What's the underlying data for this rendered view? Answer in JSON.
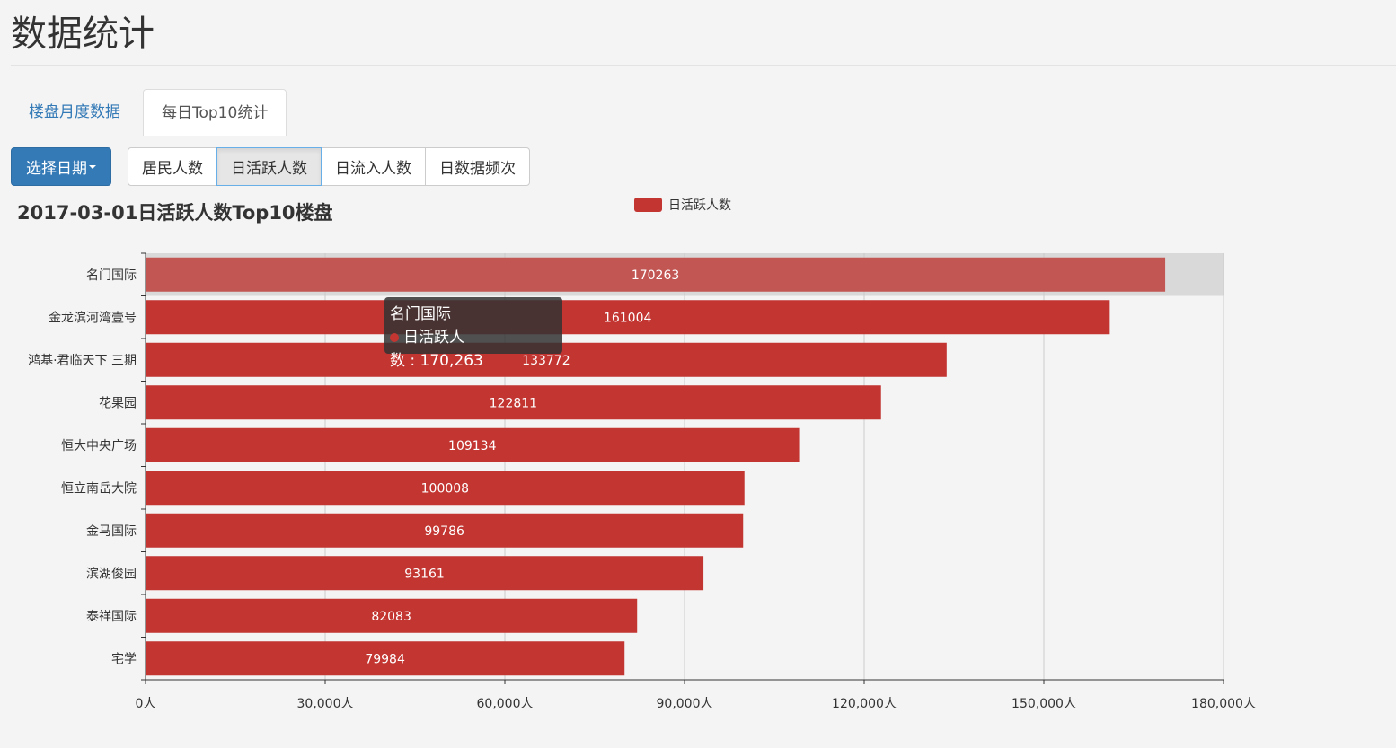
{
  "page": {
    "title": "数据统计"
  },
  "tabs": [
    {
      "label": "楼盘月度数据",
      "active": false
    },
    {
      "label": "每日Top10统计",
      "active": true
    }
  ],
  "toolbar": {
    "date_button": "选择日期",
    "metrics": [
      {
        "label": "居民人数",
        "active": false
      },
      {
        "label": "日活跃人数",
        "active": true
      },
      {
        "label": "日流入人数",
        "active": false
      },
      {
        "label": "日数据频次",
        "active": false
      }
    ]
  },
  "chart_data": {
    "type": "bar",
    "orientation": "horizontal",
    "title": "2017-03-01日活跃人数Top10楼盘",
    "categories": [
      "名门国际",
      "金龙滨河湾壹号",
      "鸿基·君临天下 三期",
      "花果园",
      "恒大中央广场",
      "恒立南岳大院",
      "金马国际",
      "滨湖俊园",
      "泰祥国际",
      "宅学"
    ],
    "series": [
      {
        "name": "日活跃人数",
        "values": [
          170263,
          161004,
          133772,
          122811,
          109134,
          100008,
          99786,
          93161,
          82083,
          79984
        ],
        "color": "#c23531"
      }
    ],
    "xlim": [
      0,
      180000
    ],
    "x_ticks": [
      "0人",
      "30,000人",
      "60,000人",
      "90,000人",
      "120,000人",
      "150,000人",
      "180,000人"
    ],
    "grid": true,
    "legend_position": "top-center",
    "highlight_color": "#c25653",
    "tooltip": {
      "title": "名门国际",
      "series": "日活跃人数",
      "value": "170,263"
    }
  }
}
